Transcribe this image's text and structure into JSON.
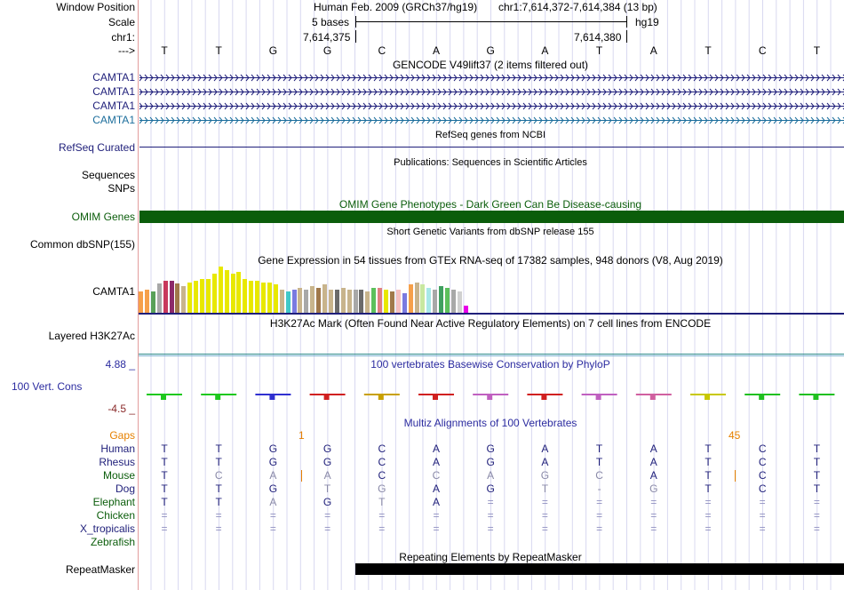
{
  "header": {
    "window_position_label": "Window Position",
    "scale_label": "Scale",
    "chrom_label": "chr1:",
    "arrow_label": "--->",
    "assembly_text": "Human Feb. 2009 (GRCh37/hg19)",
    "position_text": "chr1:7,614,372-7,614,384 (13 bp)",
    "scale_text": "5 bases",
    "db_text": "hg19",
    "coord_left": "7,614,375",
    "coord_right": "7,614,380"
  },
  "bases": [
    "T",
    "T",
    "G",
    "G",
    "C",
    "A",
    "G",
    "A",
    "T",
    "A",
    "T",
    "C",
    "T"
  ],
  "gencode": {
    "caption": "GENCODE V49lift37 (2 items filtered out)",
    "labels": [
      "CAMTA1",
      "CAMTA1",
      "CAMTA1",
      "CAMTA1"
    ]
  },
  "refseq": {
    "label": "RefSeq Curated",
    "caption": "RefSeq genes from NCBI"
  },
  "publications": {
    "caption": "Publications: Sequences in Scientific Articles",
    "label1": "Sequences",
    "label2": "SNPs"
  },
  "omim": {
    "caption": "OMIM Gene Phenotypes - Dark Green Can Be Disease-causing",
    "label": "OMIM Genes"
  },
  "dbsnp": {
    "caption": "Short Genetic Variants from dbSNP release 155",
    "label": "Common dbSNP(155)"
  },
  "gtex": {
    "caption": "Gene Expression in 54 tissues from GTEx RNA-seq of 17382 samples, 948 donors (V8, Aug 2019)",
    "label": "CAMTA1",
    "values": [
      24,
      26,
      24,
      33,
      36,
      36,
      33,
      30,
      34,
      36,
      38,
      38,
      44,
      52,
      48,
      44,
      46,
      38,
      36,
      36,
      34,
      34,
      32,
      26,
      24,
      26,
      28,
      26,
      30,
      28,
      32,
      26,
      26,
      28,
      26,
      26,
      26,
      24,
      28,
      28,
      26,
      24,
      26,
      22,
      32,
      34,
      32,
      28,
      26,
      30,
      28,
      26,
      24,
      8
    ],
    "colors": [
      "#f6a04a",
      "#f6a04a",
      "#58a058",
      "#a8a8a8",
      "#c8385c",
      "#8c2a6a",
      "#a0784a",
      "#c8b48c",
      "#e8e800",
      "#e8e800",
      "#e8e800",
      "#e8e800",
      "#e8e800",
      "#e8e800",
      "#e8e800",
      "#e8e800",
      "#e8e800",
      "#e8e800",
      "#e8e800",
      "#e8e800",
      "#e8e800",
      "#e8e800",
      "#e8e800",
      "#c8b48c",
      "#40c8c8",
      "#7a7ae0",
      "#c8b48c",
      "#a8a8a8",
      "#c8b48c",
      "#a0784a",
      "#c8b48c",
      "#c8b48c",
      "#6a6a6a",
      "#c8b48c",
      "#c8b48c",
      "#a8a8a8",
      "#6a6a6a",
      "#c8b48c",
      "#5cc05c",
      "#e08080",
      "#e8e800",
      "#a0784a",
      "#f6c0c0",
      "#7a7ae0",
      "#f6a04a",
      "#c8b48c",
      "#c8e8a0",
      "#a8e8e8",
      "#a8a8a8",
      "#40a060",
      "#5cc05c",
      "#a8a8a8",
      "#d0d0d0",
      "#e800e8"
    ]
  },
  "h3k27ac": {
    "caption": "H3K27Ac Mark (Often Found Near Active Regulatory Elements) on 7 cell lines from ENCODE",
    "label": "Layered H3K27Ac"
  },
  "phylop": {
    "caption": "100 vertebrates Basewise Conservation by PhyloP",
    "label": "100 Vert. Cons",
    "max": "4.88 _",
    "min": "-4.5 _"
  },
  "multiz": {
    "caption": "Multiz Alignments of 100 Vertebrates",
    "gaps_label": "Gaps",
    "gap_left": "1",
    "gap_right": "45",
    "species": [
      {
        "name": "Human",
        "seq": [
          "T",
          "T",
          "G",
          "G",
          "C",
          "A",
          "G",
          "A",
          "T",
          "A",
          "T",
          "C",
          "T"
        ]
      },
      {
        "name": "Rhesus",
        "seq": [
          "T",
          "T",
          "G",
          "G",
          "C",
          "A",
          "G",
          "A",
          "T",
          "A",
          "T",
          "C",
          "T"
        ]
      },
      {
        "name": "Mouse",
        "seq": [
          "T",
          "C",
          "A",
          "A",
          "C",
          "C",
          "A",
          "G",
          "C",
          "A",
          "T",
          "C",
          "T"
        ]
      },
      {
        "name": "Dog",
        "seq": [
          "T",
          "T",
          "G",
          "T",
          "G",
          "A",
          "G",
          "T",
          "-",
          "G",
          "T",
          "C",
          "T"
        ]
      },
      {
        "name": "Elephant",
        "seq": [
          "T",
          "T",
          "A",
          "G",
          "T",
          "A",
          "=",
          "=",
          "=",
          "=",
          "=",
          "=",
          "="
        ]
      },
      {
        "name": "Chicken",
        "seq": [
          "=",
          "=",
          "=",
          "=",
          "=",
          "=",
          "=",
          "=",
          "=",
          "=",
          "=",
          "=",
          "="
        ]
      },
      {
        "name": "X_tropicalis",
        "seq": [
          "=",
          "=",
          "=",
          "=",
          "=",
          "=",
          "=",
          "=",
          "=",
          "=",
          "=",
          "=",
          "="
        ]
      },
      {
        "name": "Zebrafish",
        "seq": [
          "",
          "",
          "",
          "",
          "",
          "",
          "",
          "",
          "",
          "",
          "",
          "",
          ""
        ]
      }
    ]
  },
  "repeatmasker": {
    "caption": "Repeating Elements by RepeatMasker",
    "label": "RepeatMasker"
  },
  "colors": {
    "navy": "#1f1f7a",
    "omim_green": "#0b5d0b",
    "link_blue": "#2c2ca0",
    "gaps_orange": "#e68000",
    "grid": "#d8d8f0"
  }
}
